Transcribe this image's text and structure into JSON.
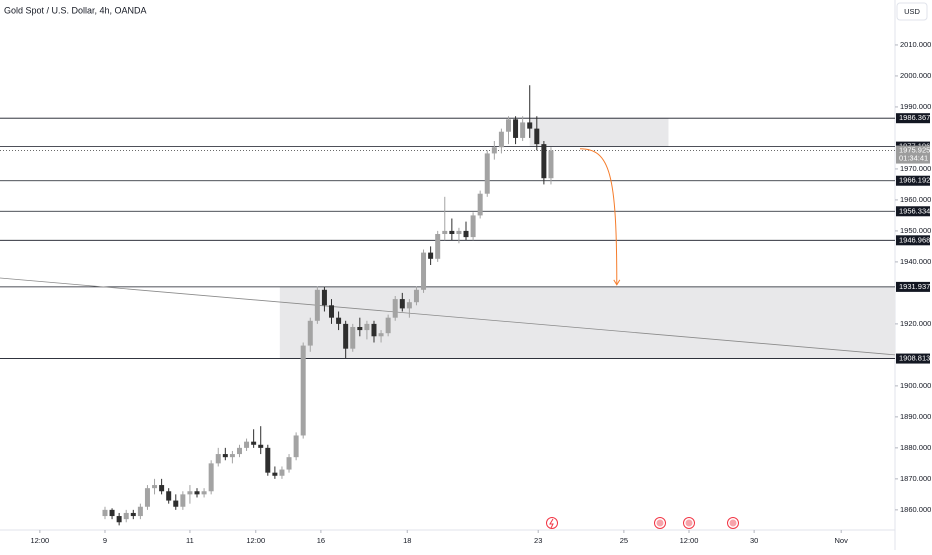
{
  "chart_data": {
    "type": "candlestick",
    "title": "Gold Spot / U.S. Dollar, 4h, OANDA",
    "currency_button": "USD",
    "up_color": "#a3a3a3",
    "down_color": "#2e2e2e",
    "open": [
      1858,
      1860,
      1858,
      1857,
      1859,
      1858,
      1861,
      1867,
      1868,
      1866,
      1863,
      1861,
      1865,
      1866,
      1865,
      1866,
      1875,
      1878,
      1877,
      1878,
      1880,
      1882,
      1881,
      1880,
      1872,
      1871,
      1873,
      1877,
      1884,
      1913,
      1921,
      1931,
      1926,
      1922,
      1920,
      1912,
      1919,
      1918,
      1920,
      1916,
      1917,
      1922,
      1928,
      1925,
      1927,
      1931,
      1943,
      1941,
      1949,
      1950,
      1949,
      1950,
      1948,
      1955,
      1962,
      1975,
      1977,
      1982,
      1986,
      1980,
      1985,
      1983,
      1978,
      1967
    ],
    "high": [
      1861,
      1860.5,
      1859,
      1860,
      1860,
      1862,
      1868,
      1870,
      1870,
      1867,
      1865,
      1866,
      1868,
      1867,
      1867,
      1876,
      1880,
      1880,
      1879,
      1881,
      1883,
      1886,
      1887,
      1881,
      1874,
      1874,
      1878,
      1885,
      1914,
      1922,
      1932,
      1932,
      1928,
      1924,
      1921,
      1920,
      1922,
      1921,
      1921,
      1918,
      1923,
      1929,
      1930,
      1928,
      1932,
      1944,
      1945,
      1950,
      1961,
      1954,
      1951,
      1953,
      1956,
      1963,
      1976,
      1979,
      1983,
      1987,
      1987,
      1987,
      1997,
      1987,
      1979,
      1977
    ],
    "low": [
      1857,
      1857,
      1855,
      1856,
      1857,
      1857,
      1860,
      1865,
      1865,
      1862,
      1860,
      1860,
      1862,
      1864,
      1864,
      1865,
      1874,
      1876,
      1875,
      1877,
      1879,
      1880,
      1878,
      1871,
      1870,
      1870,
      1872,
      1876,
      1883,
      1911,
      1920,
      1924,
      1920,
      1918,
      1909,
      1911,
      1916,
      1915,
      1914,
      1914,
      1916,
      1921,
      1924,
      1922,
      1926,
      1930,
      1939,
      1940,
      1947,
      1947,
      1946,
      1947,
      1947,
      1954,
      1961,
      1973,
      1975,
      1978,
      1978,
      1979,
      1980,
      1976,
      1965,
      1965
    ],
    "close": [
      1860,
      1858,
      1856,
      1859,
      1858,
      1861,
      1867,
      1868,
      1866,
      1863,
      1861,
      1865,
      1866,
      1865,
      1866,
      1875,
      1878,
      1877,
      1878,
      1880,
      1882,
      1881,
      1880,
      1872,
      1871,
      1873,
      1877,
      1884,
      1913,
      1921,
      1931,
      1926,
      1922,
      1920,
      1912,
      1919,
      1918,
      1920,
      1916,
      1917,
      1922,
      1928,
      1925,
      1927,
      1931,
      1943,
      1941,
      1949,
      1950,
      1949,
      1950,
      1948,
      1955,
      1962,
      1975,
      1977,
      1982,
      1986,
      1980,
      1985,
      1983,
      1978,
      1967,
      1975.925
    ],
    "xlim": [
      -14.83,
      111.6
    ],
    "xticks": [
      {
        "value": -9.2,
        "label": "12:00"
      },
      {
        "value": 0,
        "label": "9"
      },
      {
        "value": 12,
        "label": "11"
      },
      {
        "value": 21.3,
        "label": "12:00"
      },
      {
        "value": 30.5,
        "label": "16"
      },
      {
        "value": 42.7,
        "label": "18"
      },
      {
        "value": 61.2,
        "label": "23"
      },
      {
        "value": 73.3,
        "label": "25"
      },
      {
        "value": 82.5,
        "label": "12:00"
      },
      {
        "value": 91.7,
        "label": "30"
      },
      {
        "value": 104,
        "label": "Nov"
      }
    ],
    "ylim": [
      1853.5,
      2024.5
    ],
    "yticks": [
      {
        "value": 2010,
        "label": "2010.000"
      },
      {
        "value": 2000,
        "label": "2000.000"
      },
      {
        "value": 1990,
        "label": "1990.000"
      },
      {
        "value": 1970,
        "label": "1970.000"
      },
      {
        "value": 1960,
        "label": "1960.000"
      },
      {
        "value": 1950,
        "label": "1950.000"
      },
      {
        "value": 1940,
        "label": "1940.000"
      },
      {
        "value": 1920,
        "label": "1920.000"
      },
      {
        "value": 1900,
        "label": "1900.000"
      },
      {
        "value": 1890,
        "label": "1890.000"
      },
      {
        "value": 1880,
        "label": "1880.000"
      },
      {
        "value": 1870,
        "label": "1870.000"
      },
      {
        "value": 1860,
        "label": "1860.000"
      }
    ],
    "levels": [
      1986.367,
      1977.196,
      1966.192,
      1956.334,
      1946.968,
      1931.937,
      1908.813
    ],
    "current_price": 1975.925,
    "countdown": "01:34:41",
    "zones": [
      {
        "x": [
          60,
          79.6
        ],
        "y": [
          1977.196,
          1986.367
        ]
      },
      {
        "x": [
          24.7,
          111.6
        ],
        "y": [
          1908.813,
          1931.937
        ]
      }
    ],
    "trendline": {
      "x": [
        -14.83,
        111.6
      ],
      "y": [
        1934.8,
        1910.0
      ]
    },
    "arrow": {
      "x": [
        67.1,
        72.3
      ],
      "y": [
        1976.5,
        1932.6
      ],
      "color": "#f57c2b"
    }
  }
}
